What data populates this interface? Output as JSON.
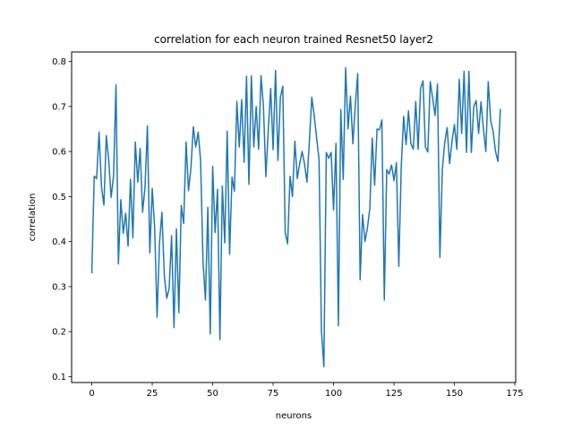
{
  "chart_data": {
    "type": "line",
    "title": "correlation for each neuron trained Resnet50 layer2",
    "xlabel": "neurons",
    "ylabel": "correlation",
    "xlim": [
      -8.35,
      175.35
    ],
    "ylim": [
      0.087,
      0.821
    ],
    "xticks": [
      0,
      25,
      50,
      75,
      100,
      125,
      150,
      175
    ],
    "yticks": [
      0.1,
      0.2,
      0.3,
      0.4,
      0.5,
      0.6,
      0.7,
      0.8
    ],
    "grid": false,
    "line_color": "#1f77b4",
    "series": [
      {
        "values": [
          0.331,
          0.545,
          0.54,
          0.643,
          0.522,
          0.481,
          0.635,
          0.58,
          0.498,
          0.547,
          0.748,
          0.35,
          0.493,
          0.418,
          0.463,
          0.39,
          0.538,
          0.408,
          0.621,
          0.532,
          0.607,
          0.465,
          0.52,
          0.657,
          0.375,
          0.518,
          0.43,
          0.232,
          0.397,
          0.465,
          0.323,
          0.274,
          0.296,
          0.413,
          0.209,
          0.428,
          0.242,
          0.48,
          0.44,
          0.621,
          0.513,
          0.563,
          0.655,
          0.61,
          0.643,
          0.58,
          0.356,
          0.27,
          0.476,
          0.195,
          0.567,
          0.42,
          0.516,
          0.182,
          0.523,
          0.397,
          0.645,
          0.372,
          0.543,
          0.512,
          0.711,
          0.61,
          0.715,
          0.576,
          0.767,
          0.527,
          0.768,
          0.61,
          0.7,
          0.605,
          0.768,
          0.7,
          0.544,
          0.648,
          0.74,
          0.604,
          0.78,
          0.58,
          0.72,
          0.745,
          0.42,
          0.395,
          0.545,
          0.5,
          0.623,
          0.54,
          0.573,
          0.6,
          0.572,
          0.532,
          0.623,
          0.72,
          0.68,
          0.63,
          0.583,
          0.201,
          0.122,
          0.598,
          0.585,
          0.598,
          0.47,
          0.618,
          0.213,
          0.693,
          0.538,
          0.786,
          0.65,
          0.723,
          0.617,
          0.703,
          0.773,
          0.315,
          0.46,
          0.4,
          0.43,
          0.473,
          0.63,
          0.525,
          0.65,
          0.648,
          0.67,
          0.27,
          0.56,
          0.55,
          0.57,
          0.535,
          0.575,
          0.345,
          0.565,
          0.678,
          0.615,
          0.69,
          0.617,
          0.605,
          0.711,
          0.605,
          0.74,
          0.757,
          0.61,
          0.599,
          0.755,
          0.718,
          0.68,
          0.75,
          0.365,
          0.56,
          0.62,
          0.653,
          0.573,
          0.622,
          0.66,
          0.605,
          0.76,
          0.64,
          0.778,
          0.598,
          0.778,
          0.598,
          0.7,
          0.713,
          0.64,
          0.71,
          0.65,
          0.6,
          0.755,
          0.668,
          0.645,
          0.6,
          0.578,
          0.693
        ]
      }
    ]
  }
}
